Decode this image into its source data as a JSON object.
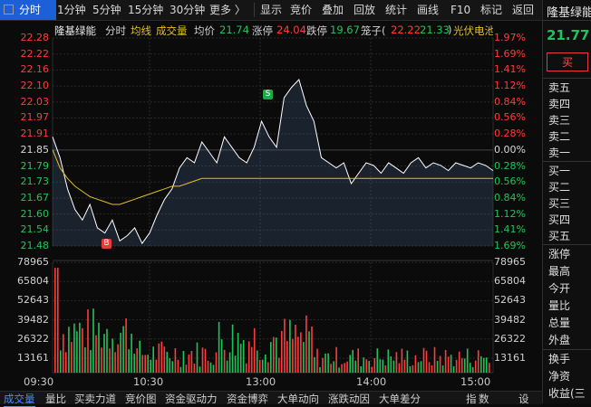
{
  "toolbar": {
    "left_tabs": [
      "分时",
      "1分钟",
      "5分钟",
      "15分钟",
      "30分钟",
      "更多 〉"
    ],
    "right_tabs": [
      "显示",
      "竞价",
      "叠加",
      "回放",
      "统计",
      "画线",
      "F10",
      "标记",
      "返回"
    ]
  },
  "header": {
    "name": "隆基绿能",
    "mode": "分时",
    "avg_label": "均线",
    "vol_label": "成交量",
    "avg_price_label": "均价",
    "avg_price_value": "21.74",
    "limit_up_label": "涨停",
    "limit_up_value": "24.04",
    "limit_down_label": "跌停",
    "limit_down_value": "19.67",
    "cage_label": "笼子",
    "cage_value_a": "22.22",
    "cage_value_b": "21.33",
    "concept": "光伏电池组件"
  },
  "y_left": [
    "22.28",
    "22.22",
    "22.16",
    "22.10",
    "22.03",
    "21.97",
    "21.91",
    "21.85",
    "21.79",
    "21.73",
    "21.67",
    "21.60",
    "21.54",
    "21.48"
  ],
  "y_right": [
    "1.97%",
    "1.69%",
    "1.41%",
    "1.12%",
    "0.84%",
    "0.56%",
    "0.28%",
    "0.00%",
    "0.28%",
    "0.56%",
    "0.84%",
    "1.12%",
    "1.41%",
    "1.69%"
  ],
  "vol_left": [
    "78965",
    "65804",
    "52643",
    "39482",
    "26322",
    "13161"
  ],
  "vol_right": [
    "78965",
    "65804",
    "52643",
    "39482",
    "26322",
    "13161"
  ],
  "x_labels": [
    "09:30",
    "10:30",
    "13:00",
    "14:00",
    "15:00"
  ],
  "markers": {
    "buy": "B",
    "sell": "S"
  },
  "bottom_tabs": [
    "成交量",
    "量比",
    "买卖力道",
    "竞价图",
    "资金驱动力",
    "资金博弈",
    "大单动向",
    "涨跌动因",
    "大单差分",
    "指",
    "数",
    "设"
  ],
  "right_panel": {
    "name": "隆基绿能",
    "price": "21.77",
    "buy_button": "买",
    "ask": [
      "卖五",
      "卖四",
      "卖三",
      "卖二",
      "卖一"
    ],
    "bid": [
      "买一",
      "买二",
      "买三",
      "买四",
      "买五"
    ],
    "stats": [
      "涨停",
      "最高",
      "今开",
      "量比",
      "总量",
      "外盘"
    ],
    "footer": [
      "换手",
      "净资",
      "收益(三"
    ]
  },
  "colors": {
    "up": "#ff3b3b",
    "down": "#22c25a",
    "neutral": "#d8d8d8",
    "price_line": "#ffffff",
    "avg_line": "#e0c020",
    "accent": "#1c5fd8"
  },
  "chart_data": {
    "type": "line",
    "x_range": [
      "09:30",
      "15:00"
    ],
    "prev_close": 21.85,
    "ylim": [
      21.48,
      22.28
    ],
    "price_series_note_points": [
      21.9,
      21.82,
      21.7,
      21.62,
      21.58,
      21.64,
      21.55,
      21.53,
      21.58,
      21.5,
      21.52,
      21.55,
      21.49,
      21.53,
      21.6,
      21.66,
      21.7,
      21.78,
      21.82,
      21.8,
      21.88,
      21.84,
      21.8,
      21.9,
      21.86,
      21.82,
      21.8,
      21.86,
      21.96,
      21.9,
      21.86,
      22.05,
      22.09,
      22.12,
      22.02,
      21.96,
      21.82,
      21.8,
      21.78,
      21.8,
      21.72,
      21.76,
      21.8,
      21.79,
      21.76,
      21.8,
      21.78,
      21.76,
      21.8,
      21.82,
      21.78,
      21.8,
      21.79,
      21.77,
      21.8,
      21.79,
      21.78,
      21.8,
      21.79,
      21.77
    ],
    "avg_series_points": [
      21.85,
      21.78,
      21.74,
      21.71,
      21.69,
      21.67,
      21.66,
      21.65,
      21.64,
      21.64,
      21.65,
      21.66,
      21.67,
      21.68,
      21.69,
      21.7,
      21.71,
      21.71,
      21.72,
      21.73,
      21.74,
      21.74,
      21.74,
      21.74,
      21.74,
      21.74,
      21.74,
      21.74,
      21.74,
      21.74,
      21.74,
      21.74,
      21.74,
      21.74,
      21.74,
      21.74,
      21.74,
      21.74,
      21.74,
      21.74,
      21.74,
      21.74,
      21.74,
      21.74,
      21.74,
      21.74,
      21.74,
      21.74,
      21.74,
      21.74,
      21.74,
      21.74,
      21.74,
      21.74,
      21.74,
      21.74,
      21.74,
      21.74,
      21.74,
      21.74
    ],
    "volume_max": 78965
  }
}
